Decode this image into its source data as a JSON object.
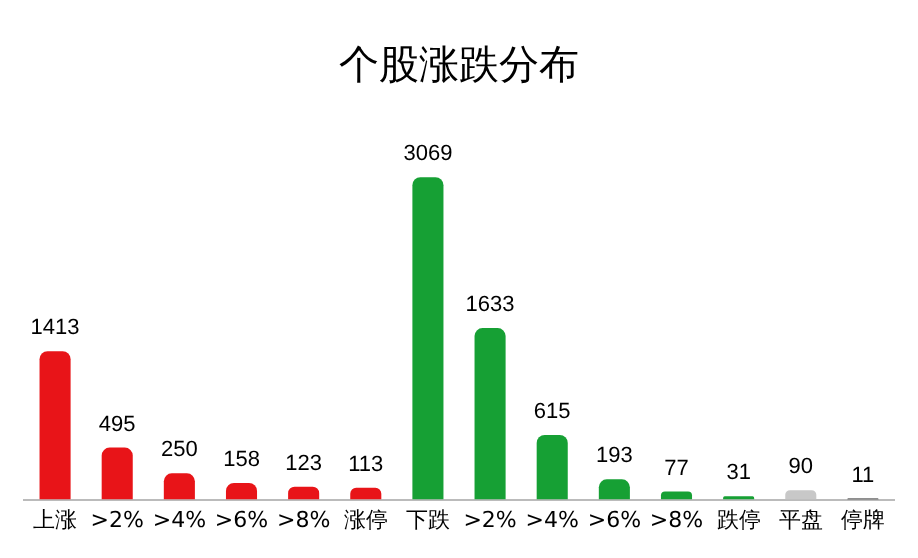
{
  "chart_data": {
    "type": "bar",
    "title": "个股涨跌分布",
    "categories": [
      "上涨",
      ">2%",
      ">4%",
      ">6%",
      ">8%",
      "涨停",
      "下跌",
      ">2%",
      ">4%",
      ">6%",
      ">8%",
      "跌停",
      "平盘",
      "停牌"
    ],
    "values": [
      1413,
      495,
      250,
      158,
      123,
      113,
      3069,
      1633,
      615,
      193,
      77,
      31,
      90,
      11
    ],
    "colors": [
      "#e81418",
      "#e81418",
      "#e81418",
      "#e81418",
      "#e81418",
      "#e81418",
      "#16a034",
      "#16a034",
      "#16a034",
      "#16a034",
      "#16a034",
      "#16a034",
      "#c8c8c8",
      "#202020"
    ],
    "data_labels": true,
    "grid": false,
    "legend": false
  }
}
